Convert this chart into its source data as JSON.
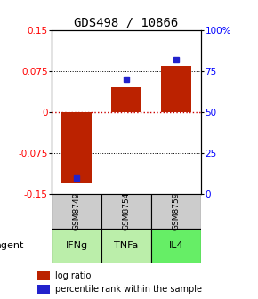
{
  "title": "GDS498 / 10866",
  "samples": [
    "GSM8749",
    "GSM8754",
    "GSM8759"
  ],
  "agents": [
    "IFNg",
    "TNFa",
    "IL4"
  ],
  "log_ratios": [
    -0.13,
    0.045,
    0.085
  ],
  "percentile_ranks": [
    10,
    70,
    82
  ],
  "ylim_left": [
    -0.15,
    0.15
  ],
  "ylim_right": [
    0,
    100
  ],
  "yticks_left": [
    -0.15,
    -0.075,
    0,
    0.075,
    0.15
  ],
  "yticks_right": [
    0,
    25,
    50,
    75,
    100
  ],
  "bar_color": "#bb2200",
  "dot_color": "#2222cc",
  "agent_colors": [
    "#bbeeaa",
    "#bbeeaa",
    "#66ee66"
  ],
  "sample_bg": "#cccccc",
  "zero_line_color": "#cc0000",
  "title_fontsize": 10,
  "tick_fontsize": 7.5,
  "legend_fontsize": 7
}
